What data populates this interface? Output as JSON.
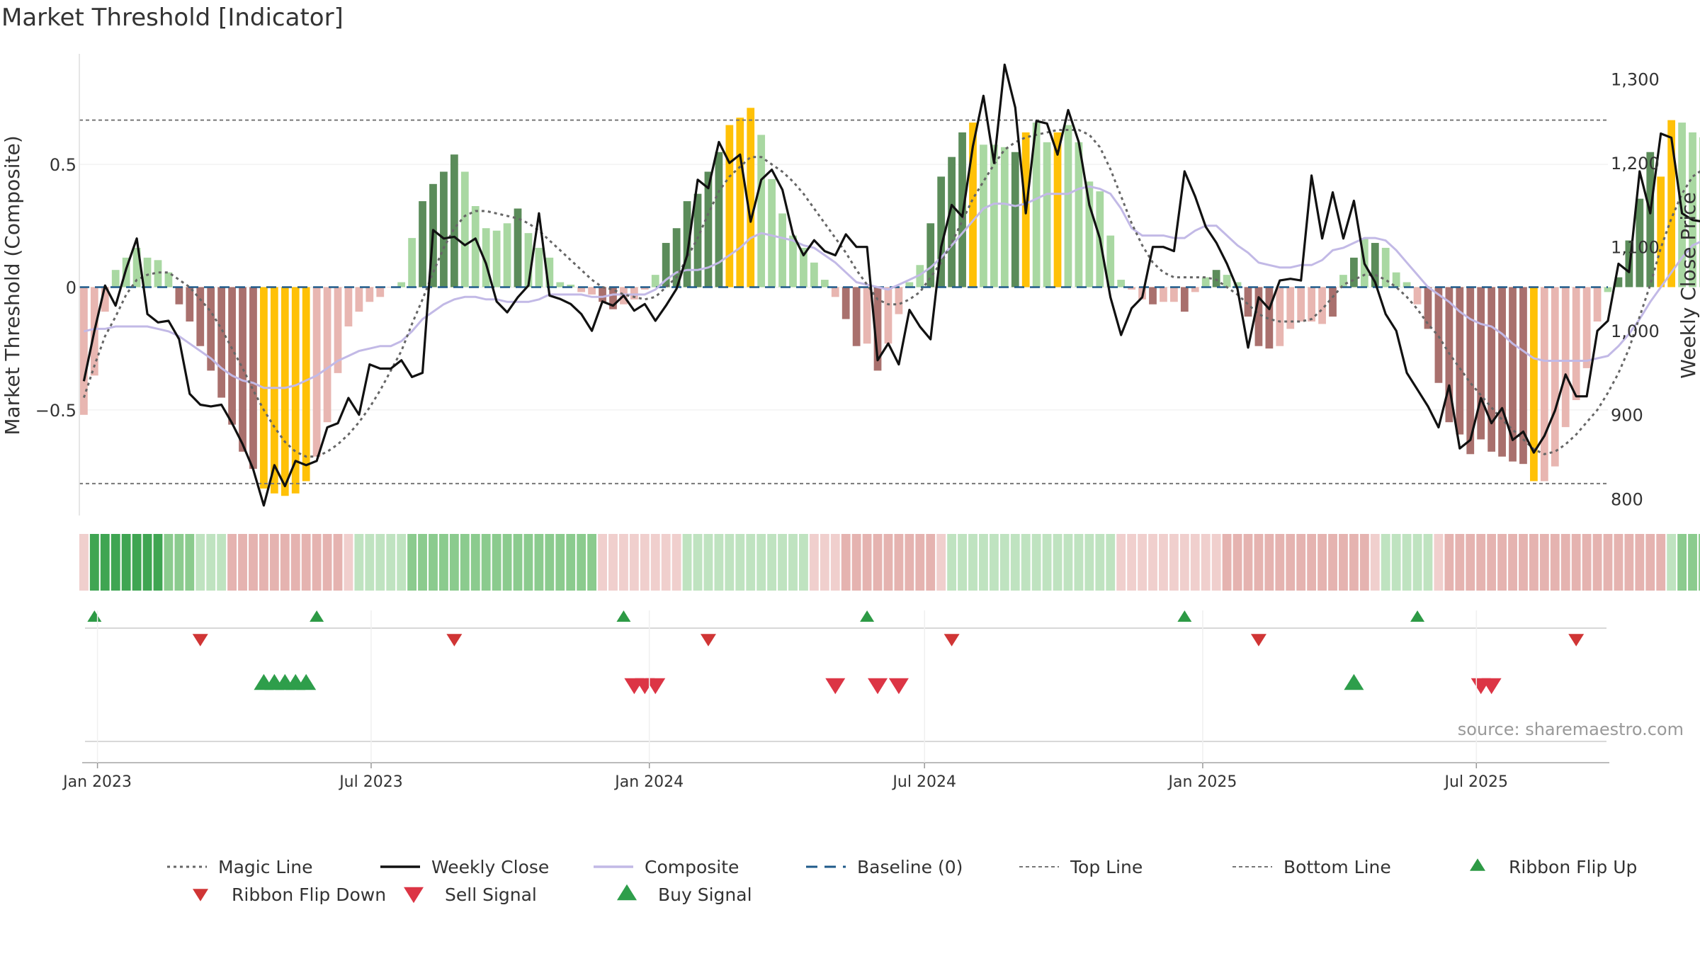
{
  "colors": {
    "bar_bull_strong": "#5b8c5a",
    "bar_bull_weak": "#a9d8a2",
    "bar_bear_strong": "#a9706d",
    "bar_bear_weak": "#e8b6b1",
    "bar_extreme": "#ffc107",
    "weekly_close": "#111111",
    "composite_line": "#c2b9e6",
    "magic_line": "#666666",
    "baseline": "#1f5a8a",
    "threshold_line": "#777777",
    "buy": "#2e9e4b",
    "sell": "#dc3545",
    "ribbon_up": "#2d9a45",
    "ribbon_down": "#d03535",
    "ribbon_green_strong": "#3fa552",
    "ribbon_green_mid": "#8bcb8e",
    "ribbon_green_light": "#bfe3c0",
    "ribbon_red_mid": "#e5b3b0",
    "ribbon_red_light": "#f0cfcd",
    "text": "#333333",
    "source_text": "#999999"
  },
  "chart_data": {
    "type": "bar",
    "title": "Market Threshold [Indicator]",
    "ylabel": "Market Threshold (Composite)",
    "ylabel_right": "Weekly Close Price",
    "ylim": [
      -0.93,
      0.95
    ],
    "ylim_right": [
      780,
      1330
    ],
    "yticks": [
      -0.5,
      0,
      0.5
    ],
    "ytick_labels": [
      "−0.5",
      "0",
      "0.5"
    ],
    "yticks_right": [
      800,
      900,
      1000,
      1100,
      1200,
      1300
    ],
    "ytick_labels_right": [
      "800",
      "900",
      "1,000",
      "1,100",
      "1,200",
      "1,300"
    ],
    "x_start": "2022-12-23",
    "x_step_days": 7,
    "x_range": [
      "2022-12-20",
      "2025-09-26"
    ],
    "xticks": [
      "2023-01-01",
      "2023-07-01",
      "2024-01-01",
      "2024-07-01",
      "2025-01-01",
      "2025-07-01"
    ],
    "xtick_labels": [
      "Jan 2023",
      "Jul 2023",
      "Jan 2024",
      "Jul 2024",
      "Jan 2025",
      "Jul 2025"
    ],
    "top_line": 0.68,
    "bottom_line": -0.8,
    "composite_bars": [
      -0.52,
      -0.36,
      -0.1,
      0.07,
      0.12,
      0.16,
      0.12,
      0.11,
      0.06,
      -0.07,
      -0.14,
      -0.24,
      -0.34,
      -0.45,
      -0.56,
      -0.67,
      -0.74,
      -0.82,
      -0.84,
      -0.85,
      -0.84,
      -0.79,
      -0.69,
      -0.55,
      -0.35,
      -0.16,
      -0.1,
      -0.06,
      -0.04,
      0,
      0.02,
      0.2,
      0.35,
      0.42,
      0.47,
      0.54,
      0.47,
      0.33,
      0.24,
      0.23,
      0.26,
      0.32,
      0.22,
      0.16,
      0.12,
      0.02,
      0.01,
      -0.02,
      -0.03,
      -0.06,
      -0.09,
      -0.07,
      -0.05,
      -0.01,
      0.05,
      0.18,
      0.24,
      0.35,
      0.38,
      0.47,
      0.55,
      0.66,
      0.69,
      0.73,
      0.62,
      0.44,
      0.3,
      0.21,
      0.16,
      0.1,
      0.03,
      -0.04,
      -0.13,
      -0.24,
      -0.23,
      -0.34,
      -0.23,
      -0.11,
      0.02,
      0.09,
      0.26,
      0.45,
      0.53,
      0.63,
      0.67,
      0.58,
      0.58,
      0.57,
      0.55,
      0.63,
      0.67,
      0.59,
      0.63,
      0.66,
      0.59,
      0.43,
      0.39,
      0.21,
      0.03,
      -0.01,
      -0.05,
      -0.07,
      -0.06,
      -0.06,
      -0.1,
      -0.02,
      0.04,
      0.07,
      0.05,
      0.02,
      -0.12,
      -0.24,
      -0.25,
      -0.24,
      -0.17,
      -0.14,
      -0.14,
      -0.15,
      -0.12,
      0.05,
      0.12,
      0.2,
      0.18,
      0.16,
      0.06,
      0.02,
      -0.07,
      -0.17,
      -0.39,
      -0.55,
      -0.6,
      -0.68,
      -0.62,
      -0.67,
      -0.69,
      -0.71,
      -0.72,
      -0.79,
      -0.79,
      -0.73,
      -0.57,
      -0.46,
      -0.33,
      -0.14,
      -0.02,
      0.04,
      0.19,
      0.36,
      0.55,
      0.45,
      0.68,
      0.67,
      0.63,
      0.61,
      0.54,
      0.47,
      0.36,
      0.25,
      0.14,
      0.07,
      0.05,
      0.08
    ],
    "bar_categories": [
      "bear_weak",
      "bear_weak",
      "bear_weak",
      "bull_weak",
      "bull_weak",
      "bull_weak",
      "bull_weak",
      "bull_weak",
      "bull_weak",
      "bear_strong",
      "bear_strong",
      "bear_strong",
      "bear_strong",
      "bear_strong",
      "bear_strong",
      "bear_strong",
      "bear_strong",
      "extreme",
      "extreme",
      "extreme",
      "extreme",
      "extreme",
      "bear_weak",
      "bear_weak",
      "bear_weak",
      "bear_weak",
      "bear_weak",
      "bear_weak",
      "bear_weak",
      "bear_weak",
      "bull_weak",
      "bull_weak",
      "bull_strong",
      "bull_strong",
      "bull_strong",
      "bull_strong",
      "bull_weak",
      "bull_weak",
      "bull_weak",
      "bull_weak",
      "bull_weak",
      "bull_strong",
      "bull_weak",
      "bull_weak",
      "bull_weak",
      "bull_weak",
      "bull_weak",
      "bear_weak",
      "bear_weak",
      "bear_strong",
      "bear_strong",
      "bear_weak",
      "bear_weak",
      "bear_weak",
      "bull_weak",
      "bull_strong",
      "bull_strong",
      "bull_strong",
      "bull_strong",
      "bull_strong",
      "bull_strong",
      "extreme",
      "extreme",
      "extreme",
      "bull_weak",
      "bull_weak",
      "bull_weak",
      "bull_weak",
      "bull_weak",
      "bull_weak",
      "bull_weak",
      "bear_weak",
      "bear_strong",
      "bear_strong",
      "bear_weak",
      "bear_strong",
      "bear_weak",
      "bear_weak",
      "bull_weak",
      "bull_weak",
      "bull_strong",
      "bull_strong",
      "bull_strong",
      "bull_strong",
      "extreme",
      "bull_weak",
      "bull_weak",
      "bull_weak",
      "bull_strong",
      "extreme",
      "bull_weak",
      "bull_weak",
      "extreme",
      "bull_weak",
      "bull_weak",
      "bull_weak",
      "bull_weak",
      "bull_weak",
      "bull_weak",
      "bear_weak",
      "bear_weak",
      "bear_strong",
      "bear_weak",
      "bear_weak",
      "bear_strong",
      "bear_weak",
      "bull_weak",
      "bull_strong",
      "bull_weak",
      "bull_weak",
      "bear_strong",
      "bear_strong",
      "bear_strong",
      "bear_weak",
      "bear_weak",
      "bear_weak",
      "bear_weak",
      "bear_weak",
      "bear_strong",
      "bull_weak",
      "bull_strong",
      "bull_weak",
      "bull_strong",
      "bull_weak",
      "bull_weak",
      "bull_weak",
      "bear_weak",
      "bear_strong",
      "bear_strong",
      "bear_strong",
      "bear_strong",
      "bear_strong",
      "bear_strong",
      "bear_strong",
      "bear_strong",
      "bear_strong",
      "bear_strong",
      "extreme",
      "bear_weak",
      "bear_weak",
      "bear_weak",
      "bear_weak",
      "bear_weak",
      "bear_weak",
      "bull_weak",
      "bull_strong",
      "bull_strong",
      "bull_strong",
      "bull_strong",
      "extreme",
      "extreme",
      "bull_weak",
      "bull_weak",
      "bull_weak",
      "bull_weak",
      "bull_weak",
      "bull_weak",
      "bull_weak",
      "bull_weak",
      "bull_strong",
      "bull_strong"
    ],
    "weekly_close": [
      940,
      1000,
      1054,
      1030,
      1074,
      1110,
      1020,
      1010,
      1012,
      990,
      925,
      912,
      910,
      912,
      890,
      865,
      835,
      792,
      840,
      815,
      845,
      840,
      845,
      885,
      890,
      920,
      900,
      960,
      955,
      955,
      965,
      945,
      950,
      1120,
      1110,
      1112,
      1102,
      1110,
      1080,
      1035,
      1022,
      1040,
      1054,
      1140,
      1042,
      1038,
      1032,
      1020,
      1000,
      1035,
      1030,
      1042,
      1024,
      1032,
      1012,
      1030,
      1050,
      1090,
      1180,
      1170,
      1225,
      1200,
      1210,
      1130,
      1180,
      1192,
      1168,
      1115,
      1090,
      1108,
      1095,
      1090,
      1115,
      1100,
      1100,
      965,
      985,
      960,
      1025,
      1005,
      990,
      1100,
      1150,
      1136,
      1220,
      1280,
      1200,
      1317,
      1266,
      1140,
      1250,
      1247,
      1210,
      1263,
      1225,
      1150,
      1110,
      1040,
      995,
      1027,
      1040,
      1100,
      1100,
      1095,
      1190,
      1160,
      1124,
      1105,
      1080,
      1050,
      980,
      1040,
      1026,
      1060,
      1062,
      1060,
      1185,
      1110,
      1165,
      1110,
      1155,
      1080,
      1058,
      1020,
      1000,
      950,
      930,
      910,
      885,
      935,
      860,
      870,
      920,
      890,
      908,
      870,
      880,
      855,
      875,
      905,
      948,
      922,
      922,
      1000,
      1012,
      1080,
      1070,
      1190,
      1140,
      1235,
      1230,
      1140,
      1132,
      1130,
      1086,
      1070,
      1072,
      1120,
      1050,
      1060,
      1105,
      1150
    ],
    "composite_line": [
      -0.18,
      -0.17,
      -0.17,
      -0.16,
      -0.16,
      -0.16,
      -0.16,
      -0.17,
      -0.18,
      -0.2,
      -0.23,
      -0.26,
      -0.29,
      -0.33,
      -0.36,
      -0.38,
      -0.39,
      -0.41,
      -0.41,
      -0.41,
      -0.4,
      -0.38,
      -0.36,
      -0.33,
      -0.3,
      -0.28,
      -0.26,
      -0.25,
      -0.24,
      -0.24,
      -0.22,
      -0.18,
      -0.13,
      -0.1,
      -0.07,
      -0.05,
      -0.04,
      -0.04,
      -0.05,
      -0.05,
      -0.06,
      -0.06,
      -0.06,
      -0.05,
      -0.03,
      -0.03,
      -0.03,
      -0.03,
      -0.04,
      -0.04,
      -0.03,
      -0.03,
      -0.03,
      -0.03,
      -0.01,
      0.03,
      0.06,
      0.07,
      0.07,
      0.08,
      0.1,
      0.13,
      0.16,
      0.2,
      0.22,
      0.21,
      0.2,
      0.19,
      0.17,
      0.16,
      0.13,
      0.1,
      0.06,
      0.02,
      0.01,
      0,
      -0.01,
      0.01,
      0.03,
      0.05,
      0.08,
      0.12,
      0.17,
      0.22,
      0.27,
      0.32,
      0.34,
      0.34,
      0.33,
      0.34,
      0.36,
      0.38,
      0.38,
      0.38,
      0.4,
      0.41,
      0.4,
      0.38,
      0.32,
      0.24,
      0.21,
      0.21,
      0.21,
      0.2,
      0.2,
      0.23,
      0.25,
      0.25,
      0.21,
      0.17,
      0.14,
      0.1,
      0.09,
      0.08,
      0.08,
      0.09,
      0.09,
      0.11,
      0.15,
      0.16,
      0.18,
      0.2,
      0.2,
      0.19,
      0.15,
      0.1,
      0.05,
      0,
      -0.03,
      -0.06,
      -0.1,
      -0.13,
      -0.15,
      -0.16,
      -0.19,
      -0.23,
      -0.26,
      -0.29,
      -0.3,
      -0.3,
      -0.3,
      -0.3,
      -0.3,
      -0.29,
      -0.28,
      -0.24,
      -0.19,
      -0.13,
      -0.06,
      0,
      0.06,
      0.12,
      0.17,
      0.19,
      0.19,
      0.19,
      0.18,
      0.17,
      0.15,
      0.13,
      0.12,
      0.11,
      0.12,
      0.14
    ],
    "magic_line": [
      -0.45,
      -0.32,
      -0.2,
      -0.12,
      -0.03,
      0.03,
      0.05,
      0.06,
      0.06,
      0.03,
      0,
      -0.05,
      -0.1,
      -0.17,
      -0.25,
      -0.33,
      -0.42,
      -0.5,
      -0.57,
      -0.63,
      -0.67,
      -0.69,
      -0.69,
      -0.67,
      -0.64,
      -0.6,
      -0.55,
      -0.49,
      -0.42,
      -0.34,
      -0.26,
      -0.15,
      -0.05,
      0.06,
      0.16,
      0.24,
      0.29,
      0.31,
      0.31,
      0.3,
      0.29,
      0.28,
      0.26,
      0.23,
      0.19,
      0.15,
      0.11,
      0.07,
      0.03,
      0,
      -0.01,
      -0.03,
      -0.04,
      -0.05,
      -0.04,
      0,
      0.04,
      0.12,
      0.2,
      0.3,
      0.39,
      0.45,
      0.49,
      0.53,
      0.53,
      0.5,
      0.47,
      0.43,
      0.38,
      0.32,
      0.26,
      0.2,
      0.14,
      0.07,
      0.01,
      -0.05,
      -0.07,
      -0.07,
      -0.05,
      -0.02,
      0.04,
      0.1,
      0.18,
      0.27,
      0.36,
      0.43,
      0.5,
      0.56,
      0.59,
      0.61,
      0.62,
      0.63,
      0.64,
      0.64,
      0.64,
      0.62,
      0.57,
      0.48,
      0.37,
      0.26,
      0.17,
      0.1,
      0.06,
      0.04,
      0.04,
      0.04,
      0.04,
      0.03,
      0,
      -0.03,
      -0.07,
      -0.11,
      -0.13,
      -0.14,
      -0.14,
      -0.14,
      -0.13,
      -0.09,
      -0.04,
      0.01,
      0.03,
      0.05,
      0.05,
      0.03,
      0,
      -0.04,
      -0.09,
      -0.15,
      -0.2,
      -0.27,
      -0.33,
      -0.39,
      -0.44,
      -0.49,
      -0.54,
      -0.58,
      -0.62,
      -0.66,
      -0.68,
      -0.67,
      -0.64,
      -0.6,
      -0.55,
      -0.5,
      -0.43,
      -0.35,
      -0.25,
      -0.12,
      0.01,
      0.16,
      0.28,
      0.38,
      0.45,
      0.48,
      0.48,
      0.45,
      0.4,
      0.35,
      0.3,
      0.25,
      0.2,
      0.18
    ],
    "ribbon_levels": [
      -1,
      3,
      3,
      3,
      3,
      3,
      3,
      3,
      2,
      2,
      2,
      1,
      1,
      1,
      -2,
      -2,
      -2,
      -2,
      -2,
      -2,
      -2,
      -2,
      -2,
      -2,
      -2,
      -1,
      1,
      1,
      1,
      1,
      1,
      2,
      2,
      2,
      2,
      2,
      2,
      2,
      2,
      2,
      2,
      2,
      2,
      2,
      2,
      2,
      2,
      2,
      2,
      -1,
      -1,
      -1,
      -1,
      -1,
      -1,
      -1,
      -1,
      1,
      1,
      1,
      1,
      1,
      1,
      1,
      1,
      1,
      1,
      1,
      1,
      -1,
      -1,
      -1,
      -2,
      -2,
      -2,
      -2,
      -2,
      -2,
      -2,
      -2,
      -2,
      -1,
      1,
      1,
      1,
      1,
      1,
      1,
      1,
      1,
      1,
      1,
      1,
      1,
      1,
      1,
      1,
      1,
      -1,
      -1,
      -1,
      -1,
      -1,
      -1,
      -1,
      -1,
      -1,
      -1,
      -2,
      -2,
      -2,
      -2,
      -2,
      -2,
      -2,
      -2,
      -2,
      -2,
      -2,
      -2,
      -2,
      -2,
      -1,
      1,
      1,
      1,
      1,
      1,
      -1,
      -2,
      -2,
      -2,
      -2,
      -2,
      -2,
      -2,
      -2,
      -2,
      -2,
      -2,
      -2,
      -2,
      -2,
      -2,
      -2,
      -2,
      -2,
      -2,
      -2,
      -2,
      1,
      2,
      2,
      2,
      2,
      2,
      2,
      2,
      2,
      2,
      2,
      2,
      2,
      2,
      1,
      1,
      1,
      1,
      -1,
      -1,
      -1
    ],
    "ribbon_flip_up": [
      "2022-12-30",
      "2023-05-26",
      "2023-12-15",
      "2024-05-24",
      "2024-12-20",
      "2025-05-23"
    ],
    "ribbon_flip_down": [
      "2023-03-10",
      "2023-08-25",
      "2024-02-09",
      "2024-07-19",
      "2025-02-07",
      "2025-09-05"
    ],
    "buy_signals": [
      "2023-04-21",
      "2023-04-28",
      "2023-05-05",
      "2023-05-12",
      "2023-05-19",
      "2025-04-11"
    ],
    "sell_signals": [
      "2023-12-22",
      "2023-12-29",
      "2024-01-05",
      "2024-05-03",
      "2024-05-31",
      "2024-06-14",
      "2025-07-04",
      "2025-07-11"
    ],
    "legend": [
      {
        "label": "Magic Line",
        "type": "dotted_line",
        "color": "#666666"
      },
      {
        "label": "Weekly Close",
        "type": "solid_line",
        "color": "#111111"
      },
      {
        "label": "Composite",
        "type": "solid_line",
        "color": "#c2b9e6"
      },
      {
        "label": "Baseline (0)",
        "type": "dashed_line",
        "color": "#1f5a8a"
      },
      {
        "label": "Top Line",
        "type": "dashed_line",
        "color": "#777777"
      },
      {
        "label": "Bottom Line",
        "type": "dashed_line",
        "color": "#777777"
      },
      {
        "label": "Ribbon Flip Up",
        "type": "triangle_up",
        "color": "#2d9a45"
      },
      {
        "label": "Ribbon Flip Down",
        "type": "triangle_down",
        "color": "#d03535"
      },
      {
        "label": "Sell Signal",
        "type": "triangle_down",
        "color": "#dc3545"
      },
      {
        "label": "Buy Signal",
        "type": "triangle_up",
        "color": "#2e9e4b"
      }
    ],
    "legend_position": "bottom",
    "grid": true
  },
  "source_note": "source: sharemaestro.com"
}
